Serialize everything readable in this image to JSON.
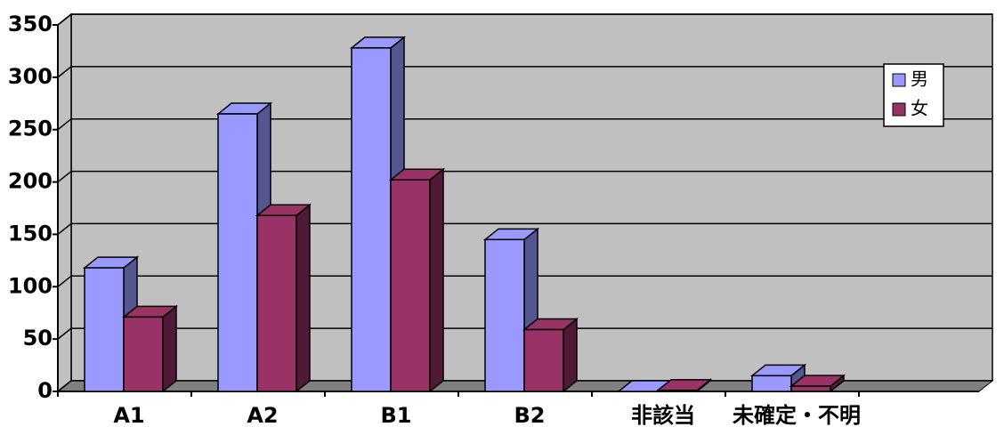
{
  "chart_data": {
    "type": "bar3d",
    "categories": [
      "A1",
      "A2",
      "B1",
      "B2",
      "非該当",
      "未確定・不明",
      null
    ],
    "series": [
      {
        "name": "男",
        "color": "#9999ff",
        "side": "#55558f",
        "values": [
          118,
          265,
          328,
          145,
          0,
          15,
          null
        ]
      },
      {
        "name": "女",
        "color": "#993366",
        "side": "#4f1a35",
        "values": [
          71,
          168,
          202,
          59,
          1,
          5,
          null
        ]
      }
    ],
    "ylim": [
      0,
      350
    ],
    "yticks": [
      0,
      50,
      100,
      150,
      200,
      250,
      300,
      350
    ],
    "grid": true,
    "legend": "upper right"
  }
}
